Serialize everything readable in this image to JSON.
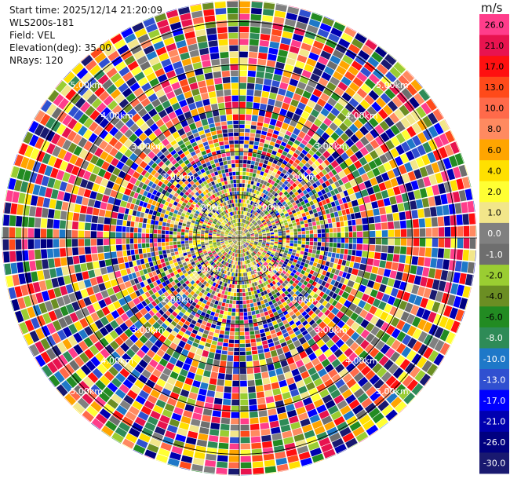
{
  "header": {
    "start_time": "Start time: 2025/12/14 21:20:09",
    "instrument": "WLS200s-181",
    "field": "Field: VEL",
    "elevation": "Elevation(deg): 35.00",
    "nrays": "NRays: 120"
  },
  "colorbar": {
    "unit": "m/s",
    "levels": [
      {
        "label": "26.0",
        "color": "#ff3d8b"
      },
      {
        "label": "21.0",
        "color": "#e8134f"
      },
      {
        "label": "17.0",
        "color": "#ff1010"
      },
      {
        "label": "13.0",
        "color": "#ff4a1a"
      },
      {
        "label": "10.0",
        "color": "#ff6a4a"
      },
      {
        "label": "8.0",
        "color": "#ff8a60"
      },
      {
        "label": "6.0",
        "color": "#ffa500"
      },
      {
        "label": "4.0",
        "color": "#ffe000"
      },
      {
        "label": "2.0",
        "color": "#ffff33"
      },
      {
        "label": "1.0",
        "color": "#f2e68a"
      },
      {
        "label": "0.0",
        "color": "#808080"
      },
      {
        "label": "-1.0",
        "color": "#6e6e6e"
      },
      {
        "label": "-2.0",
        "color": "#9acd32"
      },
      {
        "label": "-4.0",
        "color": "#6b8e23"
      },
      {
        "label": "-6.0",
        "color": "#228b22"
      },
      {
        "label": "-8.0",
        "color": "#2e8b57"
      },
      {
        "label": "-10.0",
        "color": "#1e78c8"
      },
      {
        "label": "-13.0",
        "color": "#3050d0"
      },
      {
        "label": "-17.0",
        "color": "#0000ff"
      },
      {
        "label": "-21.0",
        "color": "#0000b0"
      },
      {
        "label": "-26.0",
        "color": "#000080"
      },
      {
        "label": "-30.0",
        "color": "#191970"
      }
    ]
  },
  "chart_data": {
    "type": "heatmap",
    "projection": "polar-ppi",
    "field": "VEL",
    "units": "m/s",
    "elevation_deg": 35.0,
    "n_rays": 120,
    "azimuth_spacing_deg": 3,
    "range_km": [
      0,
      5.5
    ],
    "range_rings_km": [
      1.0,
      2.0,
      3.0,
      4.0,
      5.0
    ],
    "range_ring_labels": [
      "1.00km",
      "2.00km",
      "3.00km",
      "4.00km",
      "5.00km"
    ],
    "value_range": [
      -30,
      26
    ],
    "pattern_note": "near-zero velocities (grey/yellow/green) within about 1.5 km; noisy full-range velocities beyond"
  }
}
